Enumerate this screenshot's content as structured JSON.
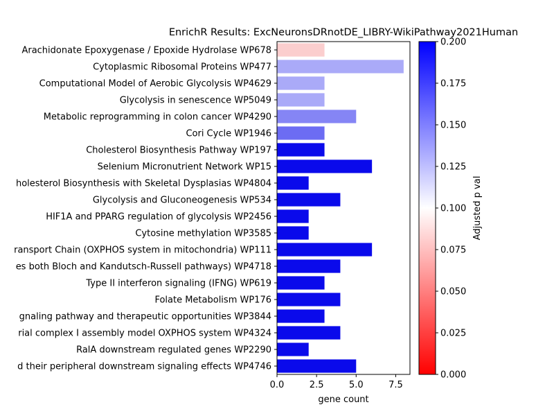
{
  "chart_data": {
    "type": "bar",
    "orientation": "horizontal",
    "title": "EnrichR Results: ExcNeuronsDRnotDE_LIBRY-WikiPathway2021Human",
    "xlabel": "gene count",
    "ylabel": "",
    "xlim": [
      0,
      8.4
    ],
    "xticks": [
      "0.0",
      "2.5",
      "5.0",
      "7.5"
    ],
    "xtick_values": [
      0,
      2.5,
      5.0,
      7.5
    ],
    "categories": [
      "Arachidonate Epoxygenase / Epoxide Hydrolase WP678",
      "Cytoplasmic Ribosomal Proteins WP477",
      "Computational Model of Aerobic Glycolysis WP4629",
      "Glycolysis in senescence WP5049",
      "Metabolic reprogramming in colon cancer WP4290",
      "Cori Cycle WP1946",
      "Cholesterol Biosynthesis Pathway WP197",
      "Selenium Micronutrient Network WP15",
      "holesterol Biosynthesis with Skeletal Dysplasias WP4804",
      "Glycolysis and Gluconeogenesis WP534",
      "HIF1A and PPARG regulation of glycolysis WP2456",
      "Cytosine methylation WP3585",
      "ransport Chain (OXPHOS system in mitochondria) WP111",
      "es both Bloch and Kandutsch-Russell pathways) WP4718",
      "Type II interferon signaling (IFNG) WP619",
      "Folate Metabolism WP176",
      "gnaling pathway and therapeutic opportunities WP3844",
      "rial complex I assembly model OXPHOS system WP4324",
      "RalA downstream regulated genes WP2290",
      "d their peripheral downstream signaling effects WP4746"
    ],
    "values": [
      3,
      8,
      3,
      3,
      5,
      3,
      3,
      6,
      2,
      4,
      2,
      2,
      6,
      4,
      3,
      4,
      3,
      4,
      2,
      5
    ],
    "adjusted_p_values": [
      0.08,
      0.135,
      0.135,
      0.135,
      0.15,
      0.16,
      0.2,
      0.2,
      0.2,
      0.2,
      0.2,
      0.2,
      0.2,
      0.2,
      0.2,
      0.2,
      0.2,
      0.2,
      0.2,
      0.2
    ],
    "colorbar": {
      "label": "Adjusted p val",
      "range": [
        0.0,
        0.2
      ],
      "ticks": [
        "0.000",
        "0.025",
        "0.050",
        "0.075",
        "0.100",
        "0.125",
        "0.150",
        "0.175",
        "0.200"
      ],
      "tick_values": [
        0.0,
        0.025,
        0.05,
        0.075,
        0.1,
        0.125,
        0.15,
        0.175,
        0.2
      ],
      "colormap": "bwr_r",
      "color_low": "#ff0000",
      "color_mid": "#ffffff",
      "color_high": "#0000ff"
    },
    "grid": false
  }
}
